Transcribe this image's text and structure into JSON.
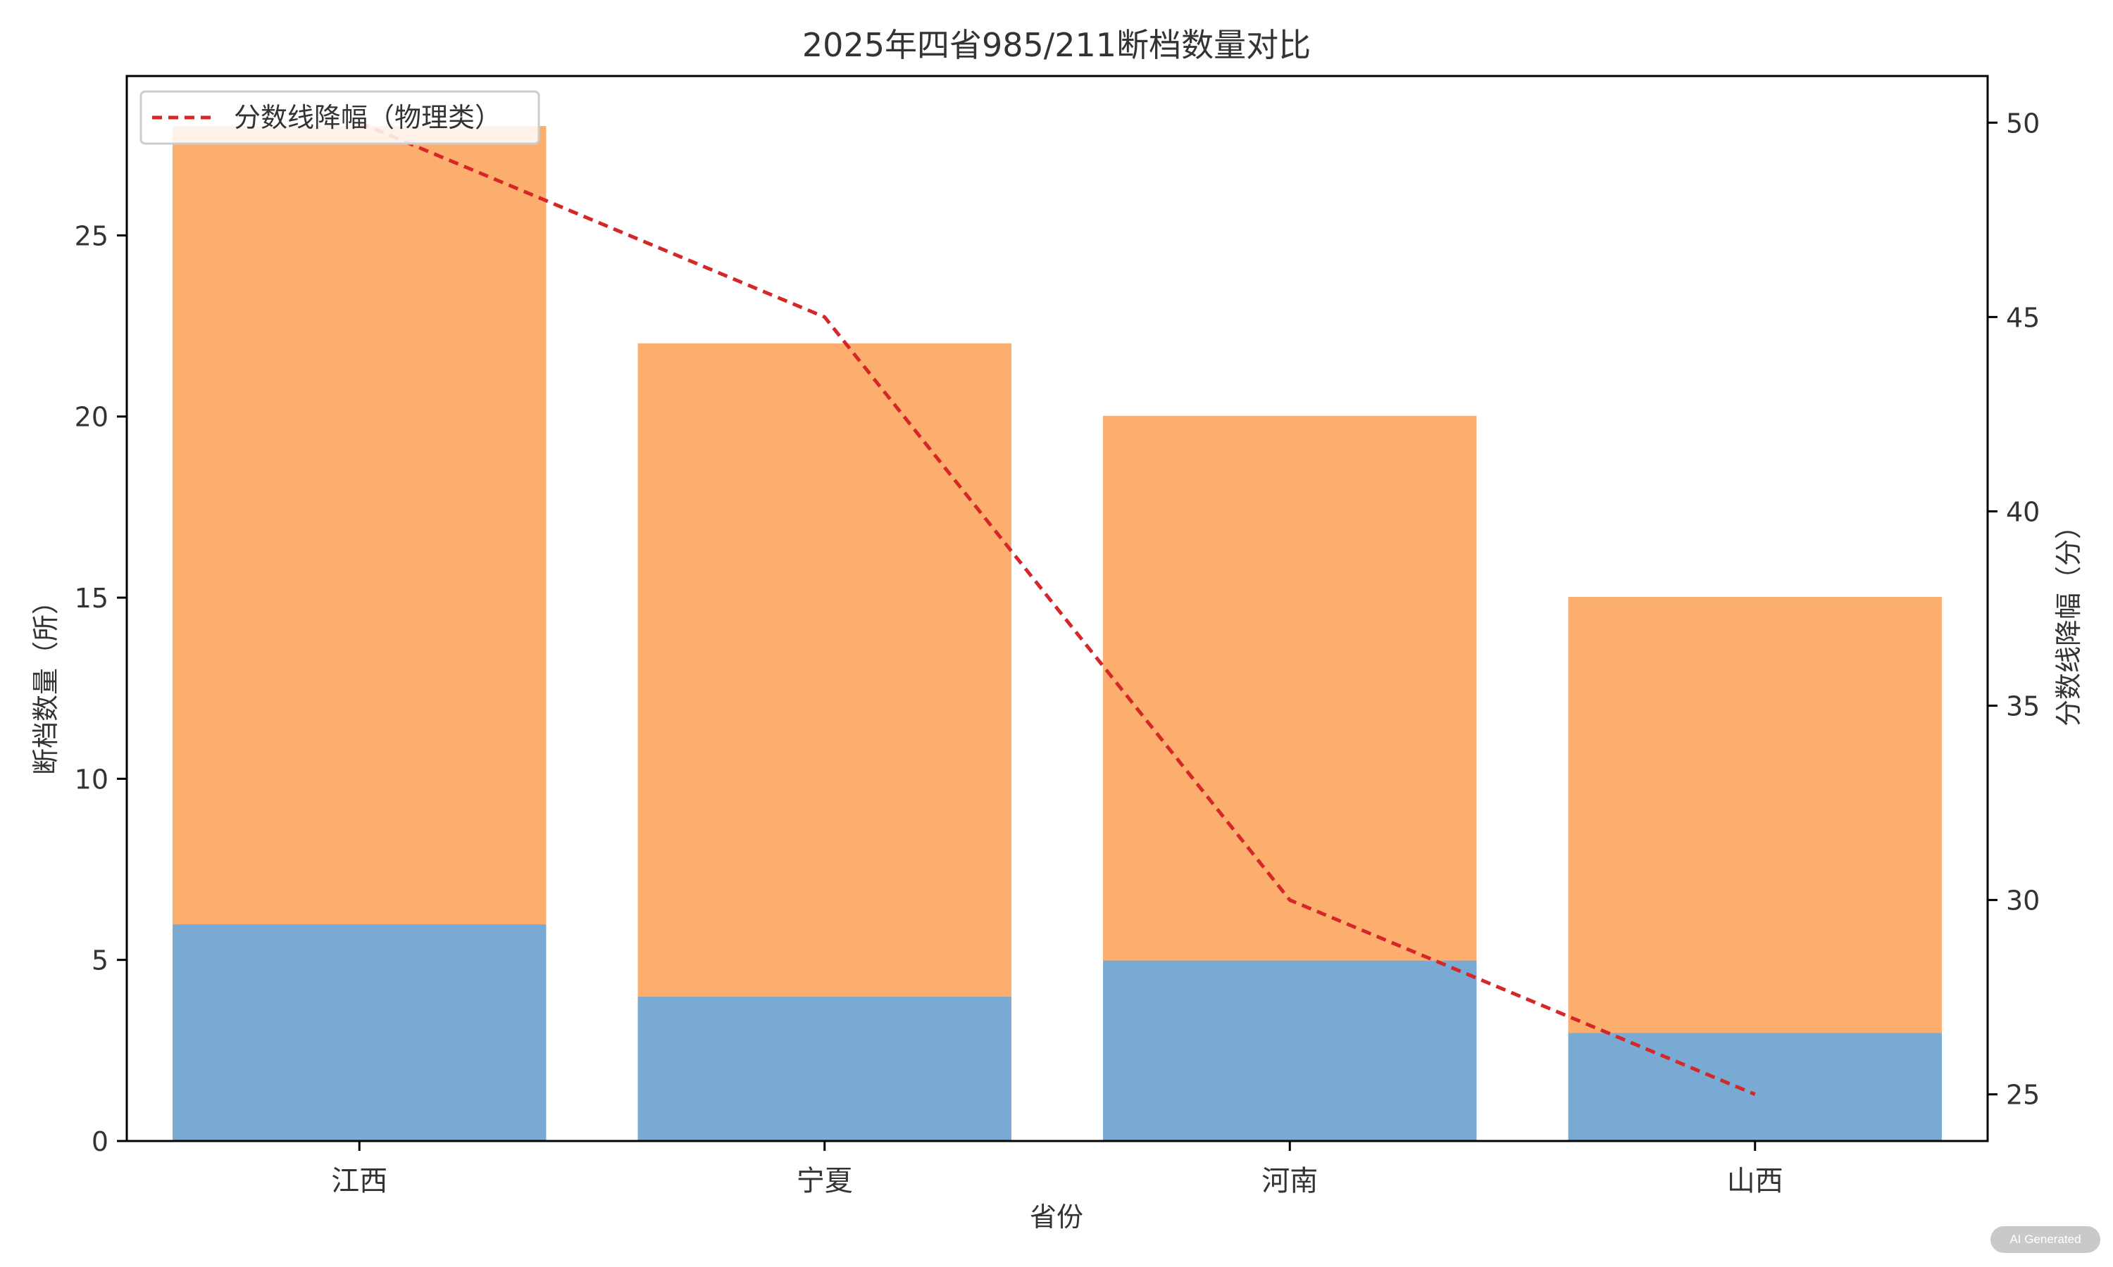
{
  "chart_data": {
    "type": "bar",
    "stacked": true,
    "title": "2025年四省985/211断档数量对比",
    "xlabel": "省份",
    "ylabel": "断档数量（所）",
    "y2label": "分数线降幅（分）",
    "categories": [
      "江西",
      "宁夏",
      "河南",
      "山西"
    ],
    "ylim": [
      0,
      29.4
    ],
    "y2lim": [
      23.8,
      51.2
    ],
    "yticks": [
      0,
      5,
      10,
      15,
      20,
      25
    ],
    "y2ticks": [
      25,
      30,
      35,
      40,
      45,
      50
    ],
    "series": [
      {
        "values": [
          6,
          4,
          5,
          3
        ],
        "color": "#78aad3"
      },
      {
        "values": [
          22,
          18,
          15,
          12
        ],
        "color": "#fcae6e"
      }
    ],
    "line": {
      "name": "分数线降幅（物理类）",
      "values": [
        50,
        45,
        30,
        25
      ],
      "color": "#d62728",
      "style": "dashed",
      "axis": "right"
    },
    "legend_position": "top-left",
    "grid": false
  },
  "watermark": "AI Generated"
}
